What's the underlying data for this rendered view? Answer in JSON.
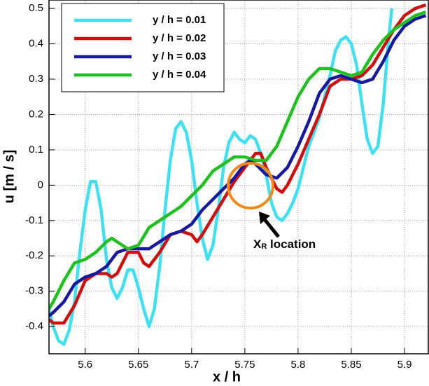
{
  "chart_data": {
    "type": "line",
    "xlabel": "x / h",
    "ylabel": "u [m / s]",
    "xlim": [
      5.566,
      5.923
    ],
    "ylim": [
      -0.477,
      0.524
    ],
    "xticks": [
      5.6,
      5.65,
      5.7,
      5.75,
      5.8,
      5.85,
      5.9
    ],
    "yticks": [
      -0.4,
      -0.3,
      -0.2,
      -0.1,
      0,
      0.1,
      0.2,
      0.3,
      0.4,
      0.5
    ],
    "grid": true,
    "legend": "upper left",
    "annotation": {
      "main": "X",
      "sub": "R",
      "rest": " location"
    },
    "series": [
      {
        "name": "y / h = 0.01",
        "color": "#40e0f0",
        "x": [
          5.566,
          5.57,
          5.575,
          5.58,
          5.585,
          5.59,
          5.595,
          5.6,
          5.605,
          5.61,
          5.615,
          5.62,
          5.625,
          5.63,
          5.635,
          5.64,
          5.645,
          5.65,
          5.655,
          5.66,
          5.665,
          5.67,
          5.675,
          5.68,
          5.685,
          5.69,
          5.695,
          5.7,
          5.705,
          5.71,
          5.715,
          5.72,
          5.725,
          5.73,
          5.735,
          5.74,
          5.745,
          5.75,
          5.755,
          5.76,
          5.765,
          5.77,
          5.775,
          5.78,
          5.785,
          5.79,
          5.795,
          5.8,
          5.805,
          5.81,
          5.815,
          5.82,
          5.825,
          5.83,
          5.835,
          5.84,
          5.845,
          5.85,
          5.855,
          5.86,
          5.865,
          5.87,
          5.875,
          5.88,
          5.885,
          5.888
        ],
        "values": [
          -0.35,
          -0.4,
          -0.44,
          -0.45,
          -0.41,
          -0.33,
          -0.19,
          -0.07,
          0.01,
          0.01,
          -0.07,
          -0.21,
          -0.29,
          -0.32,
          -0.29,
          -0.24,
          -0.24,
          -0.29,
          -0.35,
          -0.4,
          -0.35,
          -0.23,
          -0.07,
          0.07,
          0.16,
          0.18,
          0.15,
          0.07,
          -0.05,
          -0.15,
          -0.21,
          -0.17,
          -0.07,
          0.05,
          0.12,
          0.15,
          0.13,
          0.12,
          0.14,
          0.13,
          0.09,
          0.03,
          -0.05,
          -0.09,
          -0.1,
          -0.08,
          -0.05,
          -0.01,
          0.05,
          0.11,
          0.15,
          0.19,
          0.25,
          0.31,
          0.38,
          0.41,
          0.42,
          0.4,
          0.34,
          0.23,
          0.13,
          0.09,
          0.11,
          0.23,
          0.41,
          0.5
        ]
      },
      {
        "name": "y / h = 0.02",
        "color": "#d01010",
        "x": [
          5.566,
          5.57,
          5.58,
          5.59,
          5.6,
          5.61,
          5.62,
          5.625,
          5.63,
          5.64,
          5.65,
          5.655,
          5.66,
          5.67,
          5.68,
          5.69,
          5.7,
          5.705,
          5.71,
          5.72,
          5.73,
          5.74,
          5.75,
          5.76,
          5.765,
          5.77,
          5.78,
          5.785,
          5.79,
          5.8,
          5.81,
          5.82,
          5.83,
          5.84,
          5.85,
          5.86,
          5.87,
          5.88,
          5.89,
          5.9,
          5.91,
          5.92
        ],
        "values": [
          -0.38,
          -0.39,
          -0.39,
          -0.34,
          -0.27,
          -0.25,
          -0.25,
          -0.26,
          -0.25,
          -0.19,
          -0.19,
          -0.22,
          -0.23,
          -0.19,
          -0.14,
          -0.13,
          -0.14,
          -0.16,
          -0.14,
          -0.09,
          -0.04,
          0.01,
          0.05,
          0.09,
          0.09,
          0.05,
          -0.01,
          -0.02,
          0.0,
          0.06,
          0.13,
          0.2,
          0.28,
          0.3,
          0.3,
          0.31,
          0.34,
          0.39,
          0.44,
          0.48,
          0.5,
          0.51
        ]
      },
      {
        "name": "y / h = 0.03",
        "color": "#1818a0",
        "x": [
          5.566,
          5.57,
          5.58,
          5.59,
          5.6,
          5.61,
          5.62,
          5.63,
          5.64,
          5.65,
          5.66,
          5.67,
          5.68,
          5.69,
          5.7,
          5.71,
          5.72,
          5.73,
          5.74,
          5.75,
          5.755,
          5.76,
          5.77,
          5.78,
          5.79,
          5.8,
          5.81,
          5.82,
          5.83,
          5.84,
          5.85,
          5.86,
          5.87,
          5.88,
          5.89,
          5.9,
          5.91,
          5.92
        ],
        "values": [
          -0.37,
          -0.36,
          -0.33,
          -0.28,
          -0.26,
          -0.25,
          -0.23,
          -0.19,
          -0.18,
          -0.18,
          -0.18,
          -0.16,
          -0.14,
          -0.13,
          -0.11,
          -0.07,
          -0.04,
          -0.01,
          0.02,
          0.06,
          0.07,
          0.06,
          0.03,
          0.02,
          0.05,
          0.11,
          0.18,
          0.26,
          0.3,
          0.31,
          0.3,
          0.29,
          0.3,
          0.35,
          0.41,
          0.45,
          0.47,
          0.48
        ]
      },
      {
        "name": "y / h = 0.04",
        "color": "#20c020",
        "x": [
          5.566,
          5.57,
          5.58,
          5.59,
          5.6,
          5.61,
          5.62,
          5.625,
          5.63,
          5.64,
          5.65,
          5.66,
          5.67,
          5.68,
          5.69,
          5.7,
          5.71,
          5.72,
          5.73,
          5.74,
          5.75,
          5.76,
          5.77,
          5.78,
          5.79,
          5.8,
          5.81,
          5.82,
          5.83,
          5.84,
          5.85,
          5.86,
          5.87,
          5.88,
          5.89,
          5.9,
          5.91,
          5.92
        ],
        "values": [
          -0.35,
          -0.33,
          -0.27,
          -0.22,
          -0.21,
          -0.19,
          -0.16,
          -0.15,
          -0.16,
          -0.18,
          -0.17,
          -0.12,
          -0.1,
          -0.08,
          -0.06,
          -0.03,
          0.0,
          0.04,
          0.06,
          0.08,
          0.08,
          0.07,
          0.07,
          0.11,
          0.18,
          0.25,
          0.3,
          0.33,
          0.33,
          0.32,
          0.31,
          0.32,
          0.37,
          0.41,
          0.44,
          0.46,
          0.48,
          0.49
        ]
      }
    ]
  }
}
